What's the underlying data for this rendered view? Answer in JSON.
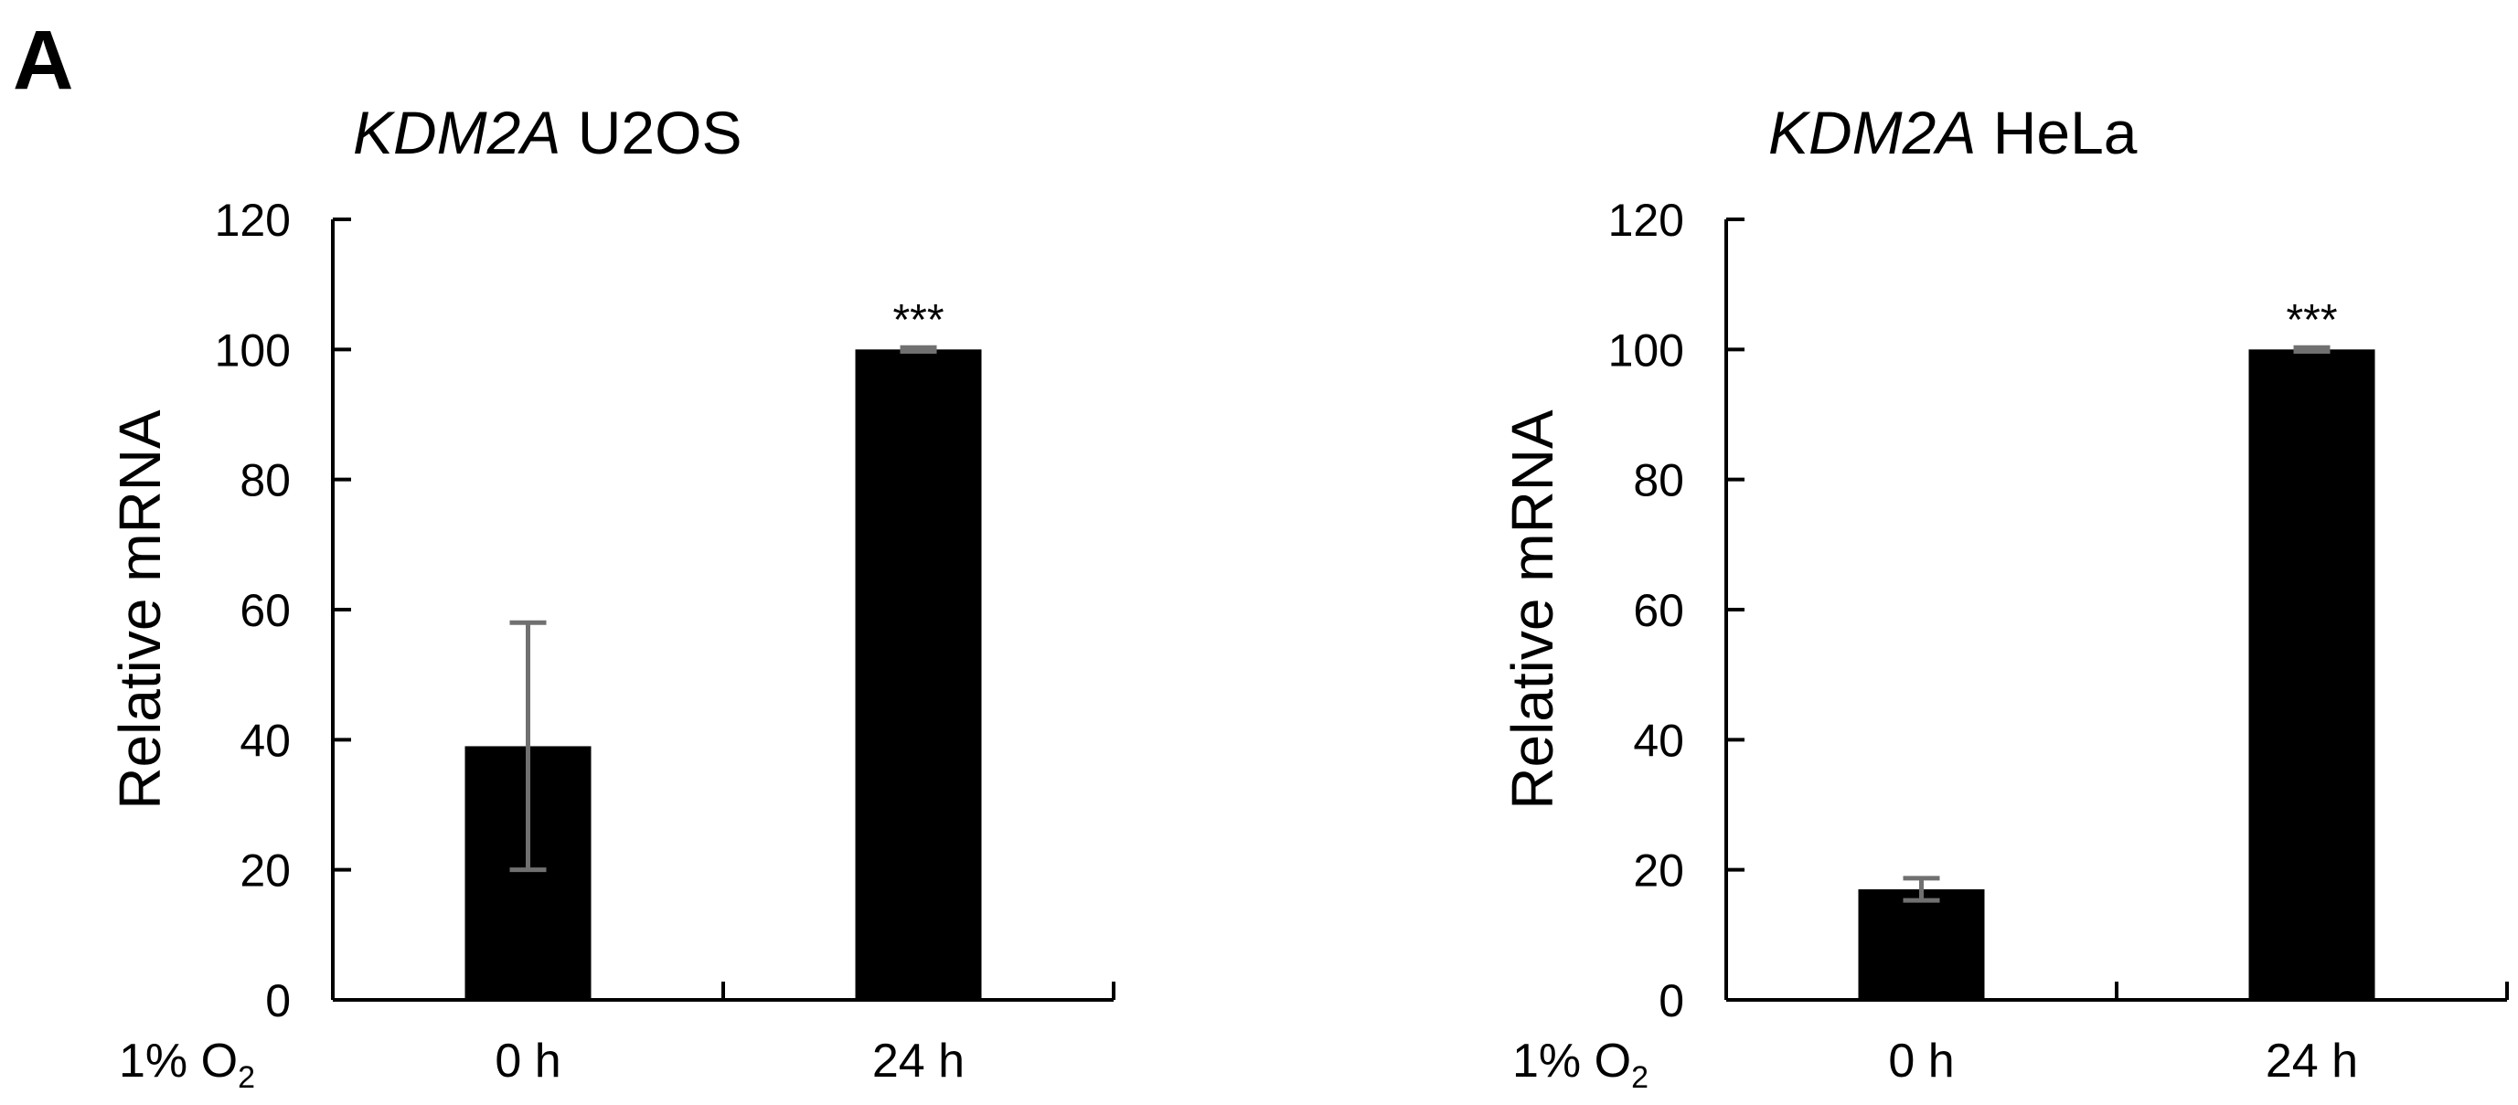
{
  "panel_label": "A",
  "chart_data": [
    {
      "type": "bar",
      "title_gene": "KDM2A",
      "title_cell": "U2OS",
      "ylabel": "Relative mRNA",
      "xlabel_prefix": "1% O",
      "xlabel_sub": "2",
      "categories": [
        "0 h",
        "24 h"
      ],
      "values": [
        39,
        100
      ],
      "errors": [
        19,
        0.3
      ],
      "significance": [
        "",
        "***"
      ],
      "ylim": [
        0,
        120
      ],
      "yticks": [
        0,
        20,
        40,
        60,
        80,
        100,
        120
      ],
      "grid": false,
      "bar_color": "#000000",
      "error_color": "#707070"
    },
    {
      "type": "bar",
      "title_gene": "KDM2A",
      "title_cell": "HeLa",
      "ylabel": "Relative mRNA",
      "xlabel_prefix": "1% O",
      "xlabel_sub": "2",
      "categories": [
        "0 h",
        "24 h"
      ],
      "values": [
        17,
        100
      ],
      "errors": [
        1.7,
        0.3
      ],
      "significance": [
        "",
        "***"
      ],
      "ylim": [
        0,
        120
      ],
      "yticks": [
        0,
        20,
        40,
        60,
        80,
        100,
        120
      ],
      "grid": false,
      "bar_color": "#000000",
      "error_color": "#707070"
    }
  ]
}
